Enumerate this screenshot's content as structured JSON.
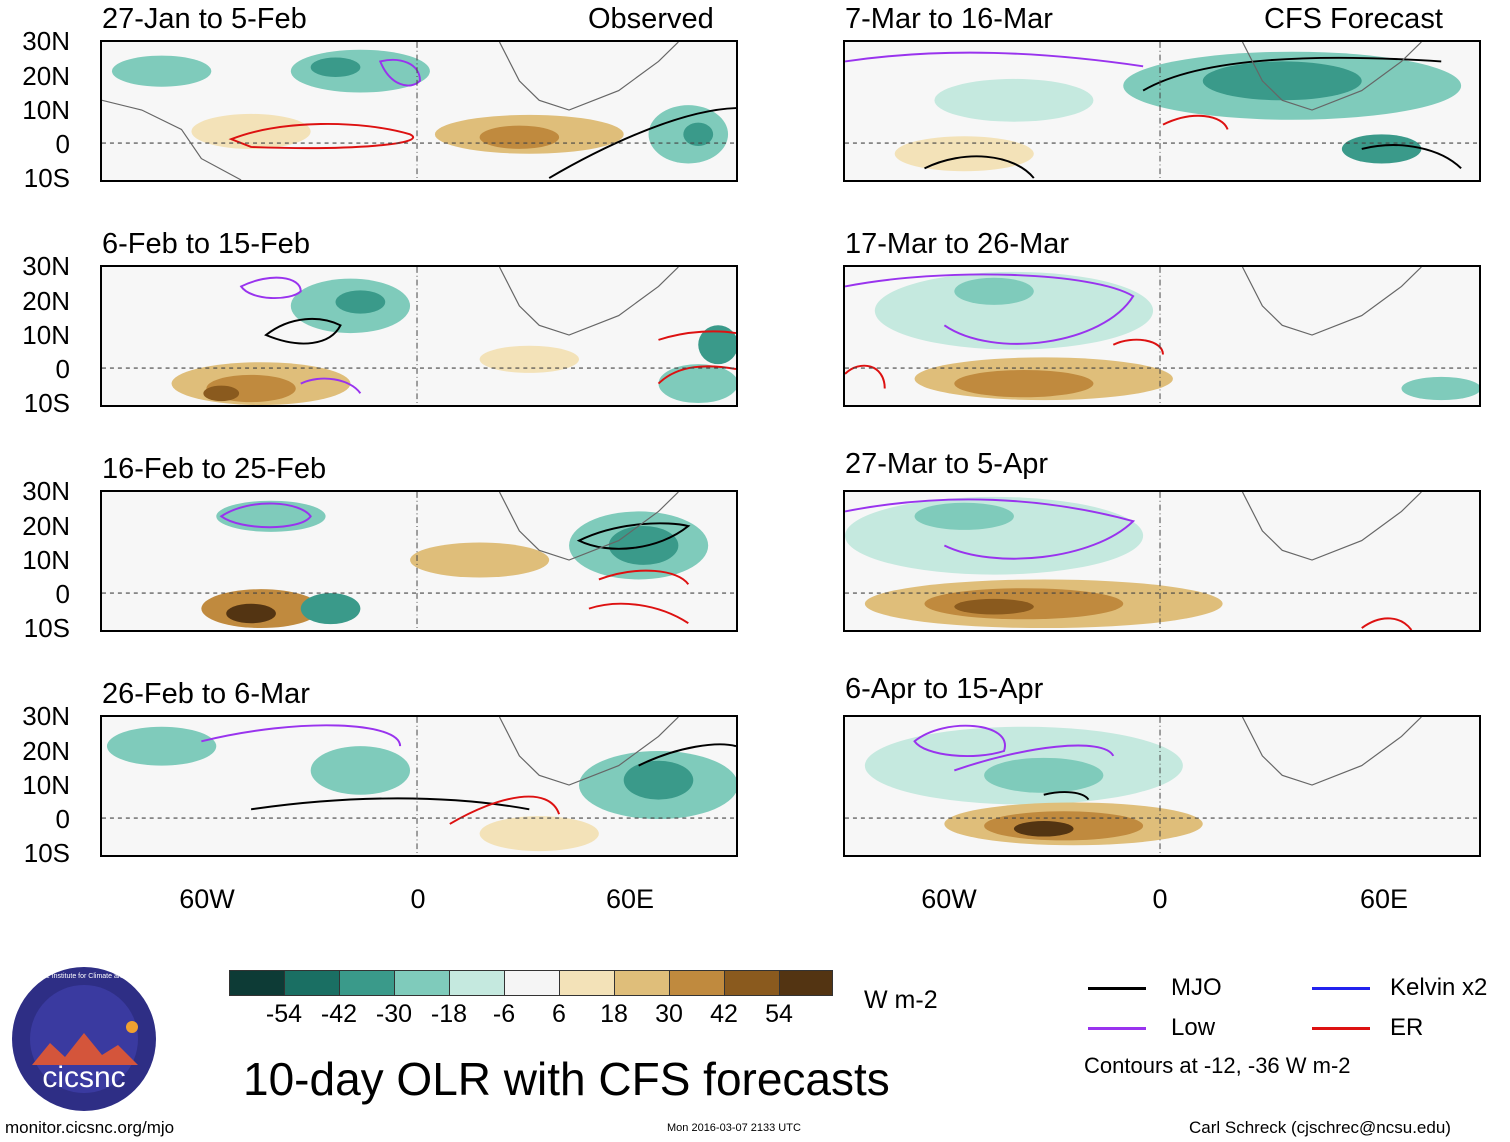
{
  "figure": {
    "title": "10-day OLR with CFS forecasts",
    "units": "W m-2",
    "contour_note": "Contours at -12, -36 W m-2",
    "left_column_label": "Observed",
    "right_column_label": "CFS Forecast"
  },
  "panels_left": [
    {
      "period": "27-Jan to 5-Feb"
    },
    {
      "period": "6-Feb to 15-Feb"
    },
    {
      "period": "16-Feb to 25-Feb"
    },
    {
      "period": "26-Feb to 6-Mar"
    }
  ],
  "panels_right": [
    {
      "period": "7-Mar to 16-Mar"
    },
    {
      "period": "17-Mar to 26-Mar"
    },
    {
      "period": "27-Mar to 5-Apr"
    },
    {
      "period": "6-Apr to 15-Apr"
    }
  ],
  "axes": {
    "lat_labels": [
      "30N",
      "20N",
      "10N",
      "0",
      "10S"
    ],
    "lon_labels": [
      "60W",
      "0",
      "60E"
    ]
  },
  "colorbar": {
    "labels": [
      "-54",
      "-42",
      "-30",
      "-18",
      "-6",
      "6",
      "18",
      "30",
      "42",
      "54"
    ],
    "colors": [
      "#0d3b36",
      "#1a6f63",
      "#3a9a8a",
      "#7fcbbb",
      "#c5e9df",
      "#f5f5f5",
      "#f3e2b8",
      "#dfbe7a",
      "#c08a3e",
      "#8a5a1e",
      "#533412"
    ]
  },
  "legend": [
    {
      "label": "MJO",
      "color": "#000000"
    },
    {
      "label": "Kelvin x2",
      "color": "#2222ee"
    },
    {
      "label": "Low",
      "color": "#9933ee"
    },
    {
      "label": "ER",
      "color": "#dd1111"
    }
  ],
  "footer": {
    "left": "monitor.cicsnc.org/mjo",
    "center": "Mon 2016-03-07 2133 UTC",
    "right": "Carl Schreck (cjschrec@ncsu.edu)",
    "logo_text": "cicsnc",
    "logo_ring_text": "Cooperative Institute for Climate and Satellites"
  }
}
